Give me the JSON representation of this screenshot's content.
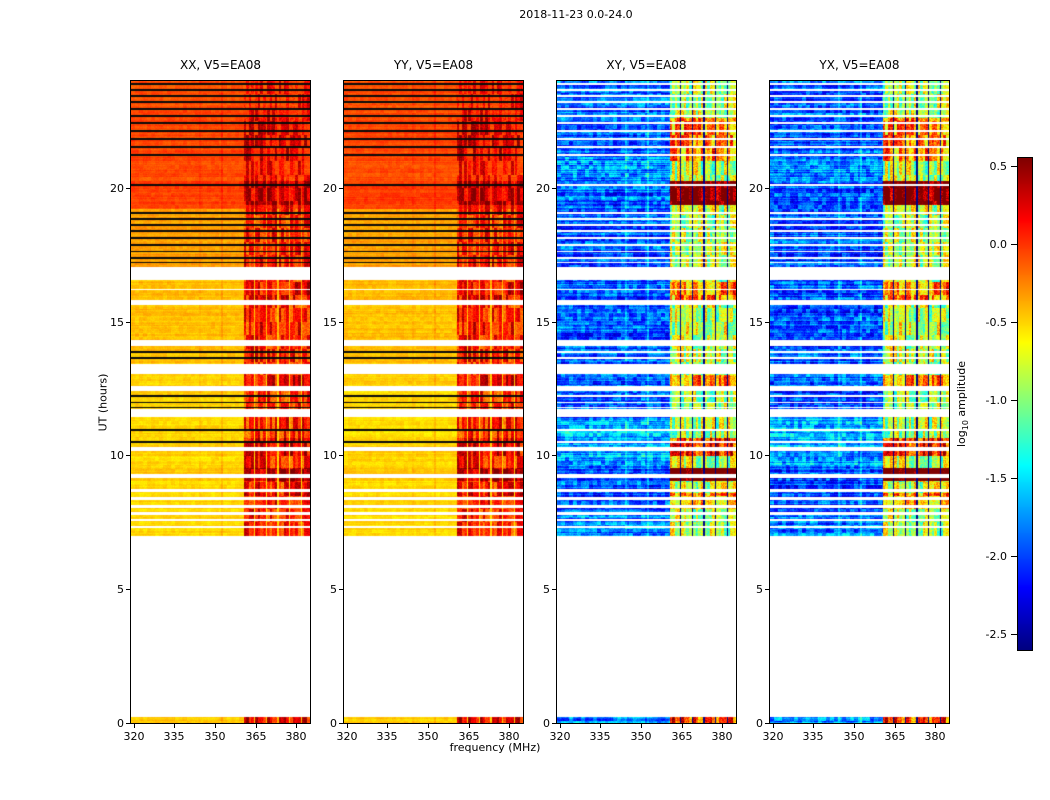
{
  "figure": {
    "suptitle": "2018-11-23 0.0-24.0",
    "xlabel": "frequency (MHz)",
    "ylabel": "UT (hours)",
    "background": "#ffffff"
  },
  "axes": {
    "x_ticks": [
      {
        "v": 320,
        "label": "320"
      },
      {
        "v": 335,
        "label": "335"
      },
      {
        "v": 350,
        "label": "350"
      },
      {
        "v": 365,
        "label": "365"
      },
      {
        "v": 380,
        "label": "380"
      }
    ],
    "y_ticks": [
      {
        "v": 0,
        "label": "0"
      },
      {
        "v": 5,
        "label": "5"
      },
      {
        "v": 10,
        "label": "10"
      },
      {
        "v": 15,
        "label": "15"
      },
      {
        "v": 20,
        "label": "20"
      }
    ],
    "x_range": [
      319,
      385
    ],
    "y_range": [
      0,
      24
    ]
  },
  "colorbar": {
    "label_prefix": "log",
    "label_sub": "10",
    "label_suffix": " amplitude",
    "ticks": [
      {
        "v": 0.5,
        "label": "0.5"
      },
      {
        "v": 0.0,
        "label": "0.0"
      },
      {
        "v": -0.5,
        "label": "-0.5"
      },
      {
        "v": -1.0,
        "label": "-1.0"
      },
      {
        "v": -1.5,
        "label": "-1.5"
      },
      {
        "v": -2.0,
        "label": "-2.0"
      },
      {
        "v": -2.5,
        "label": "-2.5"
      }
    ],
    "vmin": -2.6,
    "vmax": 0.55,
    "colormap": "jet"
  },
  "chart_data": {
    "type": "heatmap",
    "title": "2018-11-23 0.0-24.0",
    "xlabel": "frequency (MHz)",
    "ylabel": "UT (hours)",
    "x_range": [
      319,
      385
    ],
    "y_range": [
      0,
      24
    ],
    "value_units": "log10 amplitude",
    "value_range": [
      -2.6,
      0.55
    ],
    "panels": [
      {
        "title": "XX, V5=EA08",
        "pol": "XX",
        "kind": "parallel"
      },
      {
        "title": "YY, V5=EA08",
        "pol": "YY",
        "kind": "parallel"
      },
      {
        "title": "XY, V5=EA08",
        "pol": "XY",
        "kind": "cross"
      },
      {
        "title": "YX, V5=EA08",
        "pol": "YX",
        "kind": "cross"
      }
    ],
    "rfi_band": [
      360.5,
      385
    ],
    "blocks": [
      {
        "t0": 0.0,
        "t1": 0.22,
        "par": -0.5,
        "cross": -1.75
      },
      {
        "t0": 7.0,
        "t1": 11.45,
        "par": -0.52,
        "cross": -1.95
      },
      {
        "t0": 11.72,
        "t1": 13.05,
        "par": -0.5,
        "cross": -1.95
      },
      {
        "t0": 13.42,
        "t1": 16.55,
        "par": -0.44,
        "cross": -1.92
      },
      {
        "t0": 17.06,
        "t1": 19.2,
        "par": -0.34,
        "cross": -1.95
      },
      {
        "t0": 19.2,
        "t1": 24.0,
        "par": -0.08,
        "cross": -1.92
      }
    ],
    "white_gaps": [
      [
        7.29,
        7.37
      ],
      [
        7.55,
        7.63
      ],
      [
        7.78,
        7.9
      ],
      [
        8.04,
        8.16
      ],
      [
        8.34,
        8.46
      ],
      [
        8.64,
        8.76
      ],
      [
        9.16,
        9.31
      ],
      [
        10.17,
        10.33
      ],
      [
        11.45,
        11.72
      ],
      [
        12.41,
        12.61
      ],
      [
        13.05,
        13.42
      ],
      [
        14.08,
        14.33
      ],
      [
        15.62,
        15.82
      ],
      [
        16.17,
        16.24
      ],
      [
        16.55,
        17.06
      ]
    ],
    "black_lines": [
      [
        10.48,
        10.54
      ],
      [
        10.93,
        10.99
      ],
      [
        11.76,
        11.82
      ],
      [
        11.95,
        12.01
      ],
      [
        12.19,
        12.25
      ],
      [
        13.62,
        13.68
      ],
      [
        13.85,
        13.9
      ],
      [
        17.18,
        17.24
      ],
      [
        17.36,
        17.42
      ],
      [
        17.59,
        17.65
      ],
      [
        17.85,
        17.91
      ],
      [
        18.11,
        18.17
      ],
      [
        18.37,
        18.43
      ],
      [
        18.59,
        18.65
      ],
      [
        18.82,
        18.88
      ],
      [
        19.04,
        19.1
      ],
      [
        20.08,
        20.14
      ],
      [
        21.21,
        21.27
      ],
      [
        21.51,
        21.57
      ],
      [
        21.81,
        21.87
      ],
      [
        22.11,
        22.17
      ],
      [
        22.41,
        22.47
      ],
      [
        22.67,
        22.73
      ],
      [
        22.93,
        22.99
      ],
      [
        23.19,
        23.25
      ],
      [
        23.42,
        23.48
      ],
      [
        23.64,
        23.7
      ],
      [
        23.86,
        23.92
      ]
    ],
    "hot_spots": [
      {
        "t0": 0.0,
        "t1": 0.25,
        "amp": 0.5
      },
      {
        "t0": 8.0,
        "t1": 8.6,
        "amp": 0.3
      },
      {
        "t0": 9.05,
        "t1": 9.55,
        "amp": 1.0
      },
      {
        "t0": 10.0,
        "t1": 10.65,
        "amp": 0.55
      },
      {
        "t0": 12.6,
        "t1": 13.0,
        "amp": 0.3
      },
      {
        "t0": 15.7,
        "t1": 16.5,
        "amp": 0.35
      },
      {
        "t0": 19.35,
        "t1": 20.25,
        "amp": 0.9
      },
      {
        "t0": 21.0,
        "t1": 22.6,
        "amp": 0.35
      }
    ],
    "cross_bands": [
      {
        "t0": 7.0,
        "t1": 7.8,
        "dv": 0.15
      },
      {
        "t0": 9.6,
        "t1": 11.4,
        "dv": 0.28
      },
      {
        "t0": 20.2,
        "t1": 21.4,
        "dv": 0.12
      }
    ],
    "vertical_lines": [
      {
        "f": 344.5,
        "par": 0.04,
        "cross": 0.22
      },
      {
        "f": 352.5,
        "par": 0.1,
        "cross": 0.3
      }
    ]
  }
}
